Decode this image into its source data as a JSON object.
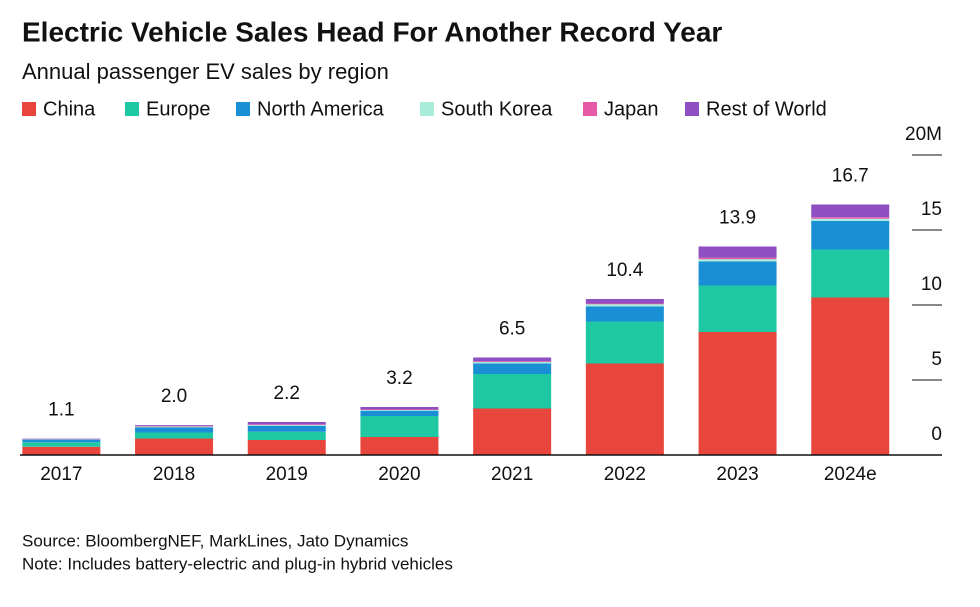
{
  "chart_data": {
    "type": "stacked_bar",
    "title": "Electric Vehicle Sales Head For Another Record Year",
    "subtitle": "Annual passenger EV sales by region",
    "categories": [
      "2017",
      "2018",
      "2019",
      "2020",
      "2021",
      "2022",
      "2023",
      "2024e"
    ],
    "series": [
      {
        "name": "China",
        "color": "#e8453c",
        "values": [
          0.55,
          1.1,
          1.0,
          1.2,
          3.1,
          6.1,
          8.2,
          10.5
        ]
      },
      {
        "name": "Europe",
        "color": "#1dc8a3",
        "values": [
          0.3,
          0.4,
          0.55,
          1.4,
          2.3,
          2.8,
          3.1,
          3.2
        ]
      },
      {
        "name": "North America",
        "color": "#1a8fd6",
        "values": [
          0.18,
          0.35,
          0.4,
          0.35,
          0.7,
          1.0,
          1.6,
          1.9
        ]
      },
      {
        "name": "South Korea",
        "color": "#a8ecd9",
        "values": [
          0.02,
          0.05,
          0.05,
          0.05,
          0.1,
          0.15,
          0.15,
          0.15
        ]
      },
      {
        "name": "Japan",
        "color": "#e65aa8",
        "values": [
          0.03,
          0.05,
          0.05,
          0.03,
          0.05,
          0.05,
          0.1,
          0.1
        ]
      },
      {
        "name": "Rest of World",
        "color": "#8e4fc2",
        "values": [
          0.02,
          0.05,
          0.15,
          0.17,
          0.25,
          0.3,
          0.75,
          0.85
        ]
      }
    ],
    "totals": {
      "values": [
        1.1,
        2.0,
        2.2,
        3.2,
        6.5,
        10.4,
        13.9,
        16.7
      ],
      "value_labels": [
        "1.1",
        "2.0",
        "2.2",
        "3.2",
        "6.5",
        "10.4",
        "13.9",
        "16.7"
      ]
    },
    "ylim": [
      0,
      20
    ],
    "yticks": [
      0,
      5,
      10,
      15,
      {
        "value": 20,
        "label": "20M"
      }
    ],
    "source": "Source: BloombergNEF, MarkLines, Jato Dynamics",
    "note": "Note: Includes battery-electric and plug-in hybrid vehicles"
  }
}
